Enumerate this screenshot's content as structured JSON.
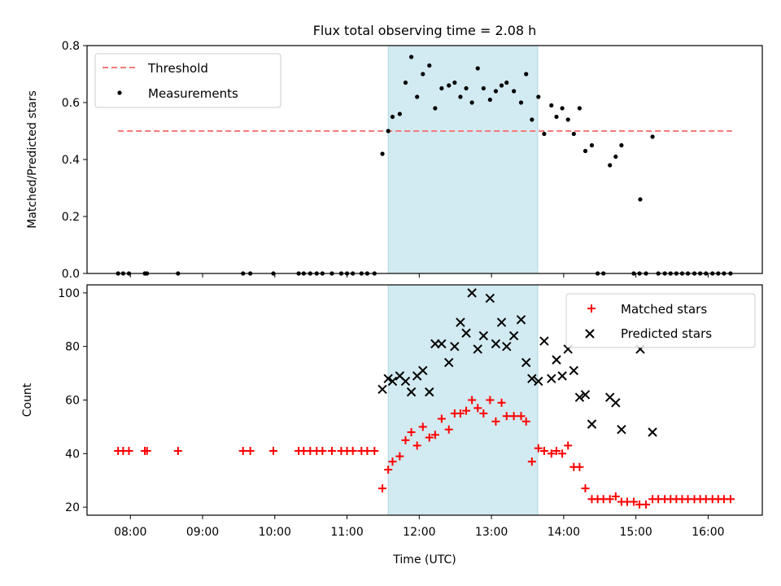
{
  "title": "Flux total observing time = 2.08 h",
  "colors": {
    "threshold": "#f47a7a",
    "measurement": "#000000",
    "matched": "#ff0000",
    "predicted": "#000000",
    "shade": "#add8e6"
  },
  "chart_data": [
    {
      "type": "scatter",
      "ylabel": "Matched/Predicted stars",
      "xlim": [
        7.4,
        16.75
      ],
      "ylim": [
        0,
        0.8
      ],
      "yticks": [
        0,
        0.2,
        0.4,
        0.6,
        0.8
      ],
      "ytick_labels": [
        "0.0",
        "0.2",
        "0.4",
        "0.6",
        "0.8"
      ],
      "legend_position": "top-left",
      "shaded_interval": [
        11.57,
        13.64
      ],
      "threshold": {
        "name": "Threshold",
        "y": 0.5,
        "x": [
          7.83,
          16.33
        ]
      },
      "series": [
        {
          "name": "Measurements",
          "points": [
            [
              7.83,
              0
            ],
            [
              7.9,
              0
            ],
            [
              7.98,
              0
            ],
            [
              8.2,
              0
            ],
            [
              8.23,
              0
            ],
            [
              8.66,
              0
            ],
            [
              9.56,
              0
            ],
            [
              9.66,
              0
            ],
            [
              9.98,
              0
            ],
            [
              10.33,
              0
            ],
            [
              10.4,
              0
            ],
            [
              10.49,
              0
            ],
            [
              10.58,
              0
            ],
            [
              10.66,
              0
            ],
            [
              10.79,
              0
            ],
            [
              10.92,
              0
            ],
            [
              11.0,
              0
            ],
            [
              11.08,
              0
            ],
            [
              11.2,
              0
            ],
            [
              11.28,
              0
            ],
            [
              11.38,
              0
            ],
            [
              11.49,
              0.42
            ],
            [
              11.57,
              0.5
            ],
            [
              11.63,
              0.55
            ],
            [
              11.73,
              0.56
            ],
            [
              11.81,
              0.67
            ],
            [
              11.89,
              0.76
            ],
            [
              11.97,
              0.62
            ],
            [
              12.05,
              0.7
            ],
            [
              12.14,
              0.73
            ],
            [
              12.22,
              0.58
            ],
            [
              12.31,
              0.65
            ],
            [
              12.41,
              0.66
            ],
            [
              12.49,
              0.67
            ],
            [
              12.57,
              0.62
            ],
            [
              12.65,
              0.65
            ],
            [
              12.73,
              0.6
            ],
            [
              12.81,
              0.72
            ],
            [
              12.89,
              0.65
            ],
            [
              12.98,
              0.61
            ],
            [
              13.06,
              0.64
            ],
            [
              13.14,
              0.66
            ],
            [
              13.21,
              0.67
            ],
            [
              13.31,
              0.64
            ],
            [
              13.41,
              0.6
            ],
            [
              13.48,
              0.7
            ],
            [
              13.56,
              0.54
            ],
            [
              13.65,
              0.62
            ],
            [
              13.73,
              0.49
            ],
            [
              13.83,
              0.59
            ],
            [
              13.9,
              0.55
            ],
            [
              13.98,
              0.58
            ],
            [
              14.06,
              0.54
            ],
            [
              14.14,
              0.49
            ],
            [
              14.22,
              0.58
            ],
            [
              14.3,
              0.43
            ],
            [
              14.39,
              0.45
            ],
            [
              14.47,
              0
            ],
            [
              14.55,
              0
            ],
            [
              14.64,
              0.38
            ],
            [
              14.72,
              0.41
            ],
            [
              14.8,
              0.45
            ],
            [
              14.97,
              0
            ],
            [
              15.05,
              0
            ],
            [
              15.06,
              0.26
            ],
            [
              15.14,
              0
            ],
            [
              15.23,
              0.48
            ],
            [
              15.31,
              0
            ],
            [
              15.4,
              0
            ],
            [
              15.48,
              0
            ],
            [
              15.56,
              0
            ],
            [
              15.64,
              0
            ],
            [
              15.72,
              0
            ],
            [
              15.81,
              0
            ],
            [
              15.89,
              0
            ],
            [
              15.97,
              0
            ],
            [
              16.06,
              0
            ],
            [
              16.14,
              0
            ],
            [
              16.22,
              0
            ],
            [
              16.31,
              0
            ]
          ]
        }
      ]
    },
    {
      "type": "scatter",
      "xlabel": "Time (UTC)",
      "ylabel": "Count",
      "xlim": [
        7.4,
        16.75
      ],
      "ylim": [
        17,
        103
      ],
      "yticks": [
        20,
        40,
        60,
        80,
        100
      ],
      "ytick_labels": [
        "20",
        "40",
        "60",
        "80",
        "100"
      ],
      "xticks": [
        8,
        9,
        10,
        11,
        12,
        13,
        14,
        15,
        16
      ],
      "xtick_labels": [
        "08:00",
        "09:00",
        "10:00",
        "11:00",
        "12:00",
        "13:00",
        "14:00",
        "15:00",
        "16:00"
      ],
      "legend_position": "top-right",
      "shaded_interval": [
        11.57,
        13.64
      ],
      "series": [
        {
          "name": "Matched stars",
          "points": [
            [
              7.83,
              41
            ],
            [
              7.9,
              41
            ],
            [
              7.98,
              41
            ],
            [
              8.2,
              41
            ],
            [
              8.23,
              41
            ],
            [
              8.66,
              41
            ],
            [
              9.56,
              41
            ],
            [
              9.66,
              41
            ],
            [
              9.98,
              41
            ],
            [
              10.33,
              41
            ],
            [
              10.4,
              41
            ],
            [
              10.49,
              41
            ],
            [
              10.58,
              41
            ],
            [
              10.66,
              41
            ],
            [
              10.79,
              41
            ],
            [
              10.92,
              41
            ],
            [
              11.0,
              41
            ],
            [
              11.08,
              41
            ],
            [
              11.2,
              41
            ],
            [
              11.28,
              41
            ],
            [
              11.38,
              41
            ],
            [
              11.49,
              27
            ],
            [
              11.57,
              34
            ],
            [
              11.63,
              37
            ],
            [
              11.73,
              39
            ],
            [
              11.81,
              45
            ],
            [
              11.89,
              48
            ],
            [
              11.97,
              43
            ],
            [
              12.05,
              50
            ],
            [
              12.14,
              46
            ],
            [
              12.22,
              47
            ],
            [
              12.31,
              53
            ],
            [
              12.41,
              49
            ],
            [
              12.49,
              55
            ],
            [
              12.57,
              55
            ],
            [
              12.65,
              56
            ],
            [
              12.73,
              60
            ],
            [
              12.81,
              57
            ],
            [
              12.89,
              55
            ],
            [
              12.98,
              60
            ],
            [
              13.06,
              52
            ],
            [
              13.14,
              59
            ],
            [
              13.21,
              54
            ],
            [
              13.31,
              54
            ],
            [
              13.41,
              54
            ],
            [
              13.48,
              52
            ],
            [
              13.56,
              37
            ],
            [
              13.65,
              42
            ],
            [
              13.73,
              41
            ],
            [
              13.83,
              40
            ],
            [
              13.9,
              41
            ],
            [
              13.98,
              40
            ],
            [
              14.06,
              43
            ],
            [
              14.14,
              35
            ],
            [
              14.22,
              35
            ],
            [
              14.3,
              27
            ],
            [
              14.39,
              23
            ],
            [
              14.47,
              23
            ],
            [
              14.55,
              23
            ],
            [
              14.64,
              23
            ],
            [
              14.72,
              24
            ],
            [
              14.8,
              22
            ],
            [
              14.88,
              22
            ],
            [
              14.97,
              22
            ],
            [
              15.05,
              21
            ],
            [
              15.14,
              21
            ],
            [
              15.23,
              23
            ],
            [
              15.31,
              23
            ],
            [
              15.4,
              23
            ],
            [
              15.48,
              23
            ],
            [
              15.56,
              23
            ],
            [
              15.64,
              23
            ],
            [
              15.72,
              23
            ],
            [
              15.81,
              23
            ],
            [
              15.89,
              23
            ],
            [
              15.97,
              23
            ],
            [
              16.06,
              23
            ],
            [
              16.14,
              23
            ],
            [
              16.22,
              23
            ],
            [
              16.31,
              23
            ]
          ]
        },
        {
          "name": "Predicted stars",
          "points": [
            [
              11.49,
              64
            ],
            [
              11.57,
              68
            ],
            [
              11.63,
              67
            ],
            [
              11.73,
              69
            ],
            [
              11.81,
              67
            ],
            [
              11.89,
              63
            ],
            [
              11.97,
              69
            ],
            [
              12.05,
              71
            ],
            [
              12.14,
              63
            ],
            [
              12.22,
              81
            ],
            [
              12.31,
              81
            ],
            [
              12.41,
              74
            ],
            [
              12.49,
              80
            ],
            [
              12.57,
              89
            ],
            [
              12.65,
              85
            ],
            [
              12.73,
              100
            ],
            [
              12.81,
              79
            ],
            [
              12.89,
              84
            ],
            [
              12.98,
              98
            ],
            [
              13.06,
              81
            ],
            [
              13.14,
              89
            ],
            [
              13.21,
              80
            ],
            [
              13.31,
              84
            ],
            [
              13.41,
              90
            ],
            [
              13.48,
              74
            ],
            [
              13.56,
              68
            ],
            [
              13.65,
              67
            ],
            [
              13.73,
              82
            ],
            [
              13.83,
              68
            ],
            [
              13.9,
              75
            ],
            [
              13.98,
              69
            ],
            [
              14.06,
              79
            ],
            [
              14.14,
              71
            ],
            [
              14.22,
              61
            ],
            [
              14.3,
              62
            ],
            [
              14.39,
              51
            ],
            [
              14.64,
              61
            ],
            [
              14.72,
              59
            ],
            [
              14.8,
              49
            ],
            [
              15.06,
              79
            ],
            [
              15.23,
              48
            ]
          ]
        }
      ]
    }
  ]
}
